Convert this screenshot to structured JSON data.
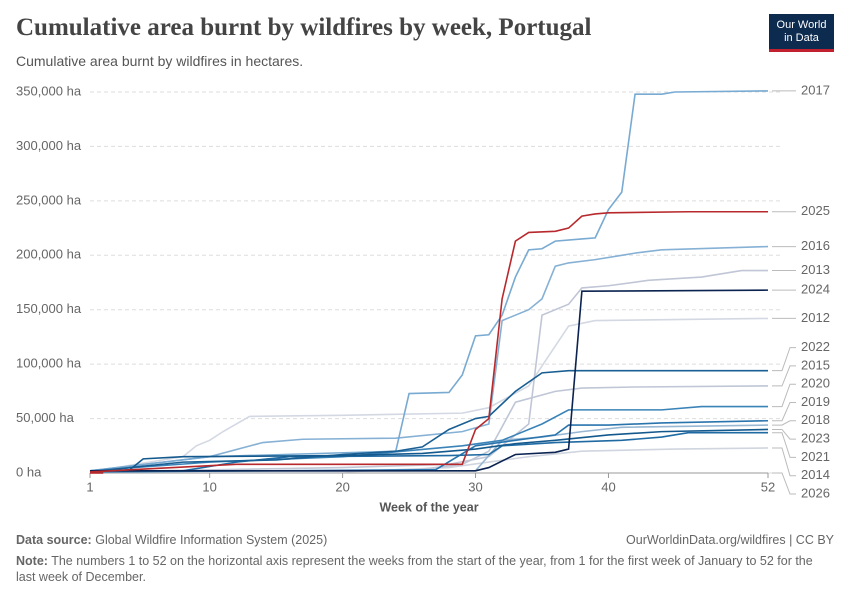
{
  "chart_data": {
    "type": "line",
    "title": "Cumulative area burnt by wildfires by week, Portugal",
    "subtitle": "Cumulative area burnt by wildfires in hectares.",
    "logo": [
      "Our World",
      "in Data"
    ],
    "xlabel": "Week of the year",
    "xlim": [
      1,
      52
    ],
    "xticks": [
      1,
      10,
      20,
      30,
      40,
      52
    ],
    "ylim": [
      0,
      350000
    ],
    "yticks": [
      {
        "value": 0,
        "label": "0 ha"
      },
      {
        "value": 50000,
        "label": "50,000 ha"
      },
      {
        "value": 100000,
        "label": "100,000 ha"
      },
      {
        "value": 150000,
        "label": "150,000 ha"
      },
      {
        "value": 200000,
        "label": "200,000 ha"
      },
      {
        "value": 250000,
        "label": "250,000 ha"
      },
      {
        "value": 300000,
        "label": "300,000 ha"
      },
      {
        "value": 350000,
        "label": "350,000 ha"
      }
    ],
    "grid": true,
    "series": [
      {
        "name": "2012",
        "color": "#d3d8e3",
        "x": [
          1,
          8,
          9,
          10,
          11,
          13,
          20,
          29,
          31,
          34,
          37,
          39,
          52
        ],
        "values": [
          1000,
          15000,
          25000,
          30000,
          38000,
          52000,
          53000,
          55000,
          60000,
          80000,
          135000,
          140000,
          142000
        ]
      },
      {
        "name": "2013",
        "color": "#c0c6d6",
        "x": [
          1,
          20,
          28,
          31,
          34,
          35,
          37,
          38,
          40,
          43,
          47,
          50,
          52
        ],
        "values": [
          1000,
          5000,
          8000,
          15000,
          45000,
          145000,
          155000,
          170000,
          172000,
          177000,
          180000,
          186000,
          186000
        ]
      },
      {
        "name": "2014",
        "color": "#d0d5df",
        "x": [
          1,
          20,
          28,
          34,
          38,
          45,
          52
        ],
        "values": [
          1000,
          1000,
          5000,
          15000,
          20000,
          22000,
          23000
        ]
      },
      {
        "name": "2015",
        "color": "#bfc6d5",
        "x": [
          1,
          25,
          29,
          31,
          33,
          36,
          38,
          42,
          52
        ],
        "values": [
          2000,
          2000,
          8000,
          20000,
          65000,
          75000,
          78000,
          79000,
          80000
        ]
      },
      {
        "name": "2018",
        "color": "#98b7d3",
        "x": [
          1,
          30,
          32,
          35,
          38,
          41,
          52
        ],
        "values": [
          2000,
          2000,
          30000,
          33000,
          38000,
          42000,
          44000
        ]
      },
      {
        "name": "2016",
        "color": "#86b1d5",
        "x": [
          1,
          10,
          14,
          17,
          24,
          29,
          31,
          32,
          34,
          35,
          36,
          37,
          39,
          41,
          42,
          44,
          52
        ],
        "values": [
          2000,
          15000,
          28000,
          31000,
          32000,
          38000,
          45000,
          140000,
          150000,
          160000,
          190000,
          193000,
          196000,
          200000,
          202000,
          205000,
          208000
        ]
      },
      {
        "name": "2017",
        "color": "#78aad2",
        "x": [
          1,
          10,
          24,
          25,
          28,
          29,
          30,
          31,
          32,
          33,
          34,
          35,
          36,
          38,
          39,
          40,
          41,
          42,
          44,
          45,
          52
        ],
        "values": [
          2000,
          15000,
          20000,
          73000,
          74000,
          90000,
          126000,
          127000,
          145000,
          180000,
          205000,
          206000,
          213000,
          215000,
          216000,
          242000,
          258000,
          348000,
          348000,
          350000,
          351000
        ]
      },
      {
        "name": "2019",
        "color": "#2a74ad",
        "x": [
          1,
          27,
          30,
          33,
          36,
          37,
          40,
          44,
          52
        ],
        "values": [
          1000,
          3000,
          25000,
          30000,
          35000,
          44000,
          44000,
          46000,
          48000
        ]
      },
      {
        "name": "2020",
        "color": "#3a83b8",
        "x": [
          1,
          10,
          20,
          29,
          32,
          35,
          37,
          44,
          47,
          52
        ],
        "values": [
          2000,
          10000,
          15000,
          25000,
          30000,
          45000,
          58000,
          58000,
          61000,
          61000
        ]
      },
      {
        "name": "2021",
        "color": "#1f6aa2",
        "x": [
          1,
          8,
          12,
          16,
          28,
          31,
          32,
          36,
          41,
          44,
          46,
          52
        ],
        "values": [
          2000,
          2000,
          10000,
          15000,
          16000,
          17000,
          25000,
          28000,
          30000,
          33000,
          37000,
          37000
        ]
      },
      {
        "name": "2022",
        "color": "#1a5f93",
        "x": [
          1,
          4,
          8,
          15,
          20,
          24,
          26,
          28,
          30,
          31,
          33,
          35,
          37,
          52
        ],
        "values": [
          1000,
          5000,
          10000,
          12000,
          17000,
          20000,
          24000,
          40000,
          50000,
          52000,
          75000,
          92000,
          94000,
          94000
        ]
      },
      {
        "name": "2023",
        "color": "#14598d",
        "x": [
          1,
          4,
          5,
          8,
          20,
          26,
          30,
          33,
          36,
          40,
          44,
          52
        ],
        "values": [
          1000,
          3000,
          13000,
          15000,
          16000,
          18000,
          22000,
          27000,
          30000,
          35000,
          38000,
          40000
        ]
      },
      {
        "name": "2024",
        "color": "#0b2350",
        "x": [
          1,
          30,
          31,
          33,
          36,
          37,
          38,
          52
        ],
        "values": [
          2000,
          2000,
          5000,
          17000,
          19000,
          22000,
          167000,
          168000
        ]
      },
      {
        "name": "2025",
        "color": "#b7292c",
        "x": [
          1,
          12,
          29,
          30,
          31,
          32,
          33,
          34,
          36,
          37,
          38,
          39,
          40,
          46,
          52
        ],
        "values": [
          1000,
          8000,
          8000,
          40000,
          50000,
          160000,
          213000,
          221000,
          222000,
          225000,
          236000,
          238000,
          239000,
          240000,
          240000
        ]
      },
      {
        "name": "2026",
        "color": "#b7292c",
        "x": [
          1,
          2
        ],
        "values": [
          0,
          0
        ]
      }
    ],
    "source_label": "Data source:",
    "source": "Global Wildfire Information System (2025)",
    "url": "OurWorldinData.org/wildfires | CC BY",
    "note_label": "Note:",
    "note": "The numbers 1 to 52 on the horizontal axis represent the weeks from the start of the year, from 1 for the first week of January to 52 for the last week of December."
  }
}
